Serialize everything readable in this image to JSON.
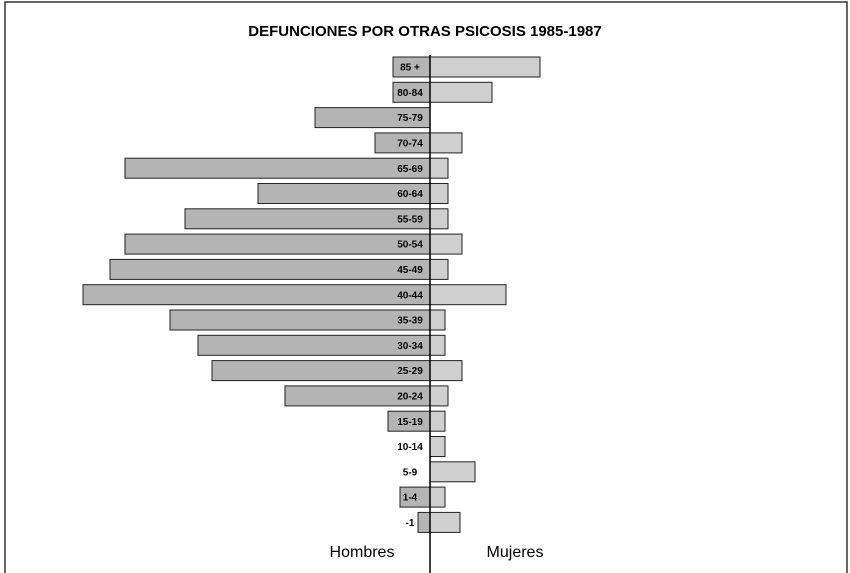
{
  "chart_data": {
    "type": "pyramid",
    "title": "DEFUNCIONES POR OTRAS PSICOSIS 1985-1987",
    "categories": [
      "85 +",
      "80-84",
      "75-79",
      "70-74",
      "65-69",
      "60-64",
      "55-59",
      "50-54",
      "45-49",
      "40-44",
      "35-39",
      "30-34",
      "25-29",
      "20-24",
      "15-19",
      "10-14",
      "5-9",
      "1-4",
      "-1"
    ],
    "series": [
      {
        "name": "Hombres",
        "color": "#b4b4b4",
        "values": [
          37,
          37,
          115,
          55,
          305,
          172,
          245,
          305,
          320,
          347,
          260,
          232,
          218,
          145,
          42,
          0,
          0,
          30,
          12
        ]
      },
      {
        "name": "Mujeres",
        "color": "#cfcfcf",
        "values": [
          110,
          62,
          0,
          32,
          18,
          18,
          18,
          32,
          18,
          76,
          15,
          15,
          32,
          18,
          15,
          15,
          45,
          15,
          30
        ]
      }
    ]
  }
}
